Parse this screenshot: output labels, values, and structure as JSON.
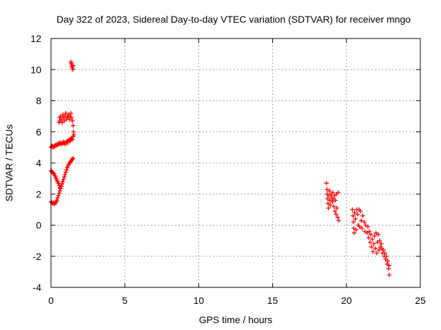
{
  "chart_data": {
    "type": "scatter",
    "title": "Day 322 of 2023, Sidereal Day-to-day VTEC variation (SDTVAR) for receiver mngo",
    "xlabel": "GPS time / hours",
    "ylabel": "SDTVAR / TECUs",
    "xlim": [
      0,
      25
    ],
    "ylim": [
      -4,
      12
    ],
    "xticks": [
      "0",
      "5",
      "10",
      "15",
      "20",
      "25"
    ],
    "yticks": [
      "-4",
      "-2",
      "0",
      "2",
      "4",
      "6",
      "8",
      "10",
      "12"
    ],
    "grid": true,
    "legend": "none",
    "marker": "plus",
    "colors": {
      "series": "#ff0000",
      "grid": "#a0a0a0",
      "axis": "#000000"
    },
    "series": [
      {
        "values": [
          {
            "x": 1.35,
            "y": 10.5
          },
          {
            "x": 1.38,
            "y": 10.4
          },
          {
            "x": 1.4,
            "y": 10.3
          },
          {
            "x": 1.42,
            "y": 10.2
          },
          {
            "x": 1.45,
            "y": 10.1
          },
          {
            "x": 1.48,
            "y": 10.0
          },
          {
            "x": 1.5,
            "y": 10.25
          },
          {
            "x": 0.55,
            "y": 6.6
          },
          {
            "x": 0.58,
            "y": 6.9
          },
          {
            "x": 0.6,
            "y": 6.7
          },
          {
            "x": 0.65,
            "y": 7.0
          },
          {
            "x": 0.7,
            "y": 6.8
          },
          {
            "x": 0.75,
            "y": 6.6
          },
          {
            "x": 0.8,
            "y": 7.1
          },
          {
            "x": 0.85,
            "y": 6.9
          },
          {
            "x": 0.9,
            "y": 6.7
          },
          {
            "x": 0.95,
            "y": 7.0
          },
          {
            "x": 1.0,
            "y": 7.2
          },
          {
            "x": 1.05,
            "y": 6.8
          },
          {
            "x": 1.1,
            "y": 7.0
          },
          {
            "x": 1.15,
            "y": 6.9
          },
          {
            "x": 1.2,
            "y": 7.1
          },
          {
            "x": 1.25,
            "y": 6.8
          },
          {
            "x": 1.3,
            "y": 7.0
          },
          {
            "x": 1.35,
            "y": 7.2
          },
          {
            "x": 1.4,
            "y": 6.9
          },
          {
            "x": 1.45,
            "y": 6.7
          },
          {
            "x": 1.5,
            "y": 6.4
          },
          {
            "x": 1.52,
            "y": 6.0
          },
          {
            "x": 1.55,
            "y": 5.8
          },
          {
            "x": 0.0,
            "y": 5.0
          },
          {
            "x": 0.05,
            "y": 5.05
          },
          {
            "x": 0.1,
            "y": 5.1
          },
          {
            "x": 0.15,
            "y": 5.0
          },
          {
            "x": 0.2,
            "y": 5.05
          },
          {
            "x": 0.25,
            "y": 5.1
          },
          {
            "x": 0.3,
            "y": 5.15
          },
          {
            "x": 0.35,
            "y": 5.1
          },
          {
            "x": 0.4,
            "y": 5.2
          },
          {
            "x": 0.45,
            "y": 5.15
          },
          {
            "x": 0.5,
            "y": 5.25
          },
          {
            "x": 0.55,
            "y": 5.2
          },
          {
            "x": 0.6,
            "y": 5.3
          },
          {
            "x": 0.65,
            "y": 5.25
          },
          {
            "x": 0.7,
            "y": 5.2
          },
          {
            "x": 0.75,
            "y": 5.3
          },
          {
            "x": 0.8,
            "y": 5.25
          },
          {
            "x": 0.85,
            "y": 5.35
          },
          {
            "x": 0.9,
            "y": 5.3
          },
          {
            "x": 0.95,
            "y": 5.2
          },
          {
            "x": 1.0,
            "y": 5.3
          },
          {
            "x": 1.05,
            "y": 5.35
          },
          {
            "x": 1.1,
            "y": 5.4
          },
          {
            "x": 1.15,
            "y": 5.3
          },
          {
            "x": 1.2,
            "y": 5.45
          },
          {
            "x": 1.25,
            "y": 5.5
          },
          {
            "x": 1.3,
            "y": 5.4
          },
          {
            "x": 1.35,
            "y": 5.55
          },
          {
            "x": 1.4,
            "y": 5.6
          },
          {
            "x": 1.45,
            "y": 5.5
          },
          {
            "x": 1.5,
            "y": 5.7
          },
          {
            "x": 0.0,
            "y": 3.5
          },
          {
            "x": 0.05,
            "y": 3.45
          },
          {
            "x": 0.1,
            "y": 3.4
          },
          {
            "x": 0.15,
            "y": 3.35
          },
          {
            "x": 0.2,
            "y": 3.3
          },
          {
            "x": 0.25,
            "y": 3.2
          },
          {
            "x": 0.3,
            "y": 3.1
          },
          {
            "x": 0.35,
            "y": 3.0
          },
          {
            "x": 0.4,
            "y": 2.9
          },
          {
            "x": 0.45,
            "y": 2.8
          },
          {
            "x": 0.5,
            "y": 2.7
          },
          {
            "x": 0.55,
            "y": 2.55
          },
          {
            "x": 0.6,
            "y": 2.4
          },
          {
            "x": 0.0,
            "y": 1.5
          },
          {
            "x": 0.05,
            "y": 1.45
          },
          {
            "x": 0.1,
            "y": 1.4
          },
          {
            "x": 0.15,
            "y": 1.45
          },
          {
            "x": 0.2,
            "y": 1.4
          },
          {
            "x": 0.25,
            "y": 1.35
          },
          {
            "x": 0.3,
            "y": 1.45
          },
          {
            "x": 0.35,
            "y": 1.5
          },
          {
            "x": 0.4,
            "y": 1.6
          },
          {
            "x": 0.45,
            "y": 1.75
          },
          {
            "x": 0.5,
            "y": 1.9
          },
          {
            "x": 0.55,
            "y": 2.05
          },
          {
            "x": 0.6,
            "y": 2.2
          },
          {
            "x": 0.65,
            "y": 2.35
          },
          {
            "x": 0.7,
            "y": 2.5
          },
          {
            "x": 0.75,
            "y": 2.65
          },
          {
            "x": 0.8,
            "y": 2.8
          },
          {
            "x": 0.85,
            "y": 2.95
          },
          {
            "x": 0.9,
            "y": 3.1
          },
          {
            "x": 0.95,
            "y": 3.25
          },
          {
            "x": 1.0,
            "y": 3.4
          },
          {
            "x": 1.05,
            "y": 3.55
          },
          {
            "x": 1.1,
            "y": 3.7
          },
          {
            "x": 1.15,
            "y": 3.8
          },
          {
            "x": 1.2,
            "y": 3.9
          },
          {
            "x": 1.25,
            "y": 4.0
          },
          {
            "x": 1.3,
            "y": 4.05
          },
          {
            "x": 1.35,
            "y": 4.1
          },
          {
            "x": 1.4,
            "y": 4.2
          },
          {
            "x": 1.45,
            "y": 4.25
          },
          {
            "x": 1.5,
            "y": 4.3
          },
          {
            "x": 18.65,
            "y": 2.7
          },
          {
            "x": 18.68,
            "y": 2.3
          },
          {
            "x": 18.7,
            "y": 2.0
          },
          {
            "x": 18.72,
            "y": 1.7
          },
          {
            "x": 18.75,
            "y": 1.4
          },
          {
            "x": 18.78,
            "y": 1.1
          },
          {
            "x": 18.8,
            "y": 1.9
          },
          {
            "x": 18.85,
            "y": 2.2
          },
          {
            "x": 18.88,
            "y": 1.6
          },
          {
            "x": 18.9,
            "y": 1.3
          },
          {
            "x": 18.95,
            "y": 2.0
          },
          {
            "x": 19.0,
            "y": 1.8
          },
          {
            "x": 19.05,
            "y": 1.5
          },
          {
            "x": 19.08,
            "y": 2.1
          },
          {
            "x": 19.1,
            "y": 1.7
          },
          {
            "x": 19.15,
            "y": 1.2
          },
          {
            "x": 19.2,
            "y": 1.9
          },
          {
            "x": 19.22,
            "y": 0.9
          },
          {
            "x": 19.25,
            "y": 1.6
          },
          {
            "x": 19.3,
            "y": 0.7
          },
          {
            "x": 19.32,
            "y": 2.0
          },
          {
            "x": 19.35,
            "y": 1.1
          },
          {
            "x": 19.4,
            "y": 0.5
          },
          {
            "x": 19.45,
            "y": 2.1
          },
          {
            "x": 19.48,
            "y": 0.3
          },
          {
            "x": 20.4,
            "y": 1.0
          },
          {
            "x": 20.45,
            "y": 0.6
          },
          {
            "x": 20.48,
            "y": 0.2
          },
          {
            "x": 20.5,
            "y": -0.2
          },
          {
            "x": 20.52,
            "y": -0.5
          },
          {
            "x": 20.55,
            "y": 0.8
          },
          {
            "x": 20.6,
            "y": 0.4
          },
          {
            "x": 20.65,
            "y": -0.3
          },
          {
            "x": 20.7,
            "y": 1.0
          },
          {
            "x": 20.75,
            "y": 0.7
          },
          {
            "x": 20.8,
            "y": 0.0
          },
          {
            "x": 20.85,
            "y": 1.0
          },
          {
            "x": 20.9,
            "y": -0.1
          },
          {
            "x": 20.95,
            "y": 0.9
          },
          {
            "x": 21.0,
            "y": 0.3
          },
          {
            "x": 21.05,
            "y": -0.2
          },
          {
            "x": 21.1,
            "y": 0.6
          },
          {
            "x": 21.2,
            "y": 0.2
          },
          {
            "x": 21.25,
            "y": -0.4
          },
          {
            "x": 21.3,
            "y": 0.0
          },
          {
            "x": 21.4,
            "y": -0.5
          },
          {
            "x": 21.45,
            "y": -0.1
          },
          {
            "x": 21.5,
            "y": -0.8
          },
          {
            "x": 21.55,
            "y": -0.4
          },
          {
            "x": 21.6,
            "y": -1.1
          },
          {
            "x": 21.65,
            "y": -0.6
          },
          {
            "x": 21.7,
            "y": -1.4
          },
          {
            "x": 21.75,
            "y": -0.9
          },
          {
            "x": 21.8,
            "y": -1.7
          },
          {
            "x": 21.85,
            "y": -1.2
          },
          {
            "x": 21.9,
            "y": -0.7
          },
          {
            "x": 21.95,
            "y": -1.5
          },
          {
            "x": 22.0,
            "y": -0.5
          },
          {
            "x": 22.05,
            "y": -1.8
          },
          {
            "x": 22.1,
            "y": -1.1
          },
          {
            "x": 22.15,
            "y": -0.6
          },
          {
            "x": 22.2,
            "y": -1.6
          },
          {
            "x": 22.25,
            "y": -1.0
          },
          {
            "x": 22.3,
            "y": -1.4
          },
          {
            "x": 22.35,
            "y": -1.2
          },
          {
            "x": 22.4,
            "y": -1.5
          },
          {
            "x": 22.45,
            "y": -1.8
          },
          {
            "x": 22.5,
            "y": -1.6
          },
          {
            "x": 22.55,
            "y": -2.0
          },
          {
            "x": 22.6,
            "y": -1.8
          },
          {
            "x": 22.65,
            "y": -2.2
          },
          {
            "x": 22.7,
            "y": -2.0
          },
          {
            "x": 22.75,
            "y": -2.5
          },
          {
            "x": 22.8,
            "y": -2.3
          },
          {
            "x": 22.85,
            "y": -2.8
          },
          {
            "x": 22.88,
            "y": -2.6
          },
          {
            "x": 22.9,
            "y": -3.2
          }
        ]
      }
    ]
  }
}
